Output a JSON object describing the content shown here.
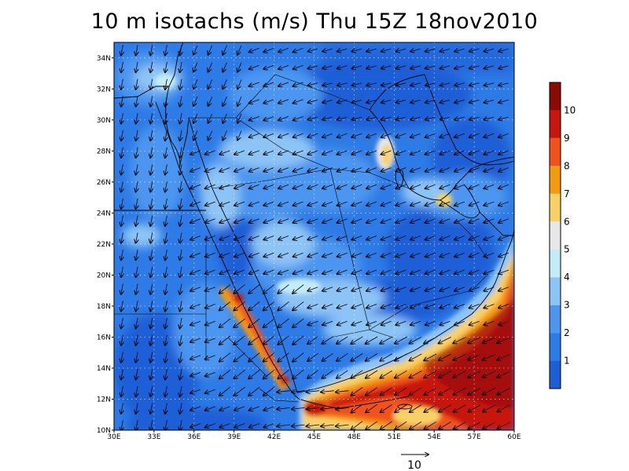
{
  "title": "10 m isotachs (m/s) Thu 15Z 18nov2010",
  "map": {
    "lat_labels": [
      "34N",
      "32N",
      "30N",
      "28N",
      "26N",
      "24N",
      "22N",
      "20N",
      "18N",
      "16N",
      "14N",
      "12N",
      "10N"
    ],
    "lon_labels": [
      "30E",
      "33E",
      "36E",
      "39E",
      "42E",
      "45E",
      "48E",
      "51E",
      "54E",
      "57E",
      "60E"
    ],
    "lat_range": [
      10,
      35
    ],
    "lon_range": [
      30,
      60
    ],
    "wind_pattern": "northeasterly flow over Arabia, strong north-easterly jet over Gulf of Aden and Arabian Sea",
    "max_speed_region": "Gulf of Aden / Arabian Sea, >10 m/s"
  },
  "colorbar": {
    "levels": [
      "1",
      "2",
      "3",
      "4",
      "5",
      "6",
      "7",
      "8",
      "9",
      "10"
    ],
    "colors": [
      "#1a5fd6",
      "#2d7be6",
      "#4c96f0",
      "#8dc4f6",
      "#c4ecf7",
      "#e7e7e7",
      "#f8d166",
      "#f39a0e",
      "#f0521a",
      "#c8160f",
      "#8b0a04"
    ]
  },
  "reference_vector": {
    "label": "10"
  }
}
